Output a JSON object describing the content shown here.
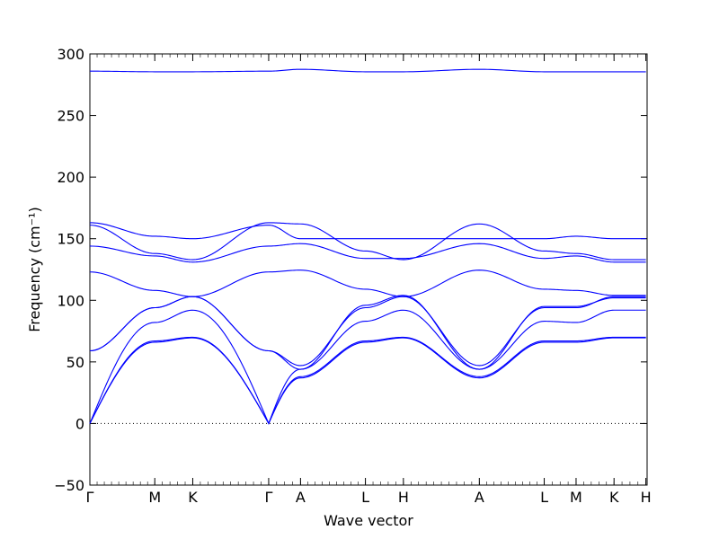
{
  "chart_data": {
    "type": "line",
    "xlabel": "Wave vector",
    "ylabel": "Frequency (cm⁻¹)",
    "ylim": [
      -50,
      300
    ],
    "yticks": [
      -50,
      0,
      50,
      100,
      150,
      200,
      250,
      300
    ],
    "xlim": [
      0,
      4.55
    ],
    "high_symmetry_points": [
      {
        "label": "Γ",
        "x": 0.0
      },
      {
        "label": "M",
        "x": 0.53
      },
      {
        "label": "K",
        "x": 0.84
      },
      {
        "label": "Γ",
        "x": 1.46
      },
      {
        "label": "A",
        "x": 1.72
      },
      {
        "label": "L",
        "x": 2.25
      },
      {
        "label": "H",
        "x": 2.56
      },
      {
        "label": "A",
        "x": 3.18
      },
      {
        "label": "L",
        "x": 3.71
      },
      {
        "label": "M",
        "x": 3.97
      },
      {
        "label": "K",
        "x": 4.28
      },
      {
        "label": "H",
        "x": 4.54
      }
    ],
    "zero_line": true,
    "line_color": "#0000ff",
    "series": [
      {
        "x": [
          0,
          0.53,
          0.84,
          1.46,
          1.72,
          2.25,
          2.56,
          3.18,
          3.71,
          3.97,
          4.28,
          4.54
        ],
        "y": [
          286,
          285.5,
          285.5,
          286,
          287.5,
          285.5,
          285.5,
          287.5,
          285.5,
          285.5,
          285.5,
          285.5
        ]
      },
      {
        "x": [
          0,
          0.53,
          0.84,
          1.46,
          1.72,
          2.25,
          2.56,
          3.18,
          3.71,
          3.97,
          4.28,
          4.54
        ],
        "y": [
          163,
          152,
          150,
          161,
          150,
          150,
          150,
          150,
          150,
          152,
          150,
          150
        ]
      },
      {
        "x": [
          0,
          0.53,
          0.84,
          1.46,
          1.72,
          2.25,
          2.56,
          3.18,
          3.71,
          3.97,
          4.28,
          4.54
        ],
        "y": [
          161,
          138,
          133,
          163,
          162,
          140,
          133,
          162,
          140,
          138,
          133,
          133
        ]
      },
      {
        "x": [
          0,
          0.53,
          0.84,
          1.46,
          1.72,
          2.25,
          2.56,
          3.18,
          3.71,
          3.97,
          4.28,
          4.54
        ],
        "y": [
          144,
          136,
          131,
          144,
          146,
          134,
          134,
          146,
          134,
          136,
          131,
          131
        ]
      },
      {
        "x": [
          0,
          0.53,
          0.84,
          1.46,
          1.72,
          2.25,
          2.56,
          3.18,
          3.71,
          3.97,
          4.28,
          4.54
        ],
        "y": [
          123,
          108,
          103,
          123,
          124.5,
          109,
          103,
          124.5,
          109,
          108,
          104,
          104
        ]
      },
      {
        "x": [
          0,
          0.53,
          0.84,
          1.46,
          1.72,
          2.25,
          2.56,
          3.18,
          3.71,
          3.97,
          4.28,
          4.54
        ],
        "y": [
          59,
          94,
          103,
          59,
          47,
          94,
          103,
          47,
          94,
          94,
          103,
          103
        ]
      },
      {
        "x": [
          0,
          0.53,
          0.84,
          1.46,
          1.72,
          2.25,
          2.56,
          3.18,
          3.71,
          3.97,
          4.28,
          4.54
        ],
        "y": [
          59,
          94,
          103,
          59,
          44,
          96,
          104,
          44,
          95,
          95,
          102,
          102
        ]
      },
      {
        "x": [
          0,
          0.53,
          0.84,
          1.46,
          1.72,
          2.25,
          2.56,
          3.18,
          3.71,
          3.97,
          4.28,
          4.54
        ],
        "y": [
          0,
          82,
          92,
          0,
          44,
          83,
          92,
          44,
          83,
          82,
          92,
          92
        ]
      },
      {
        "x": [
          0,
          0.53,
          0.84,
          1.46,
          1.72,
          2.25,
          2.56,
          3.18,
          3.71,
          3.97,
          4.28,
          4.54
        ],
        "y": [
          0,
          66,
          69.5,
          0,
          37,
          66,
          69.5,
          37,
          66,
          66,
          69.5,
          69.5
        ]
      },
      {
        "x": [
          0,
          0.53,
          0.84,
          1.46,
          1.72,
          2.25,
          2.56,
          3.18,
          3.71,
          3.97,
          4.28,
          4.54
        ],
        "y": [
          0,
          67,
          70,
          0,
          38,
          67,
          70,
          38,
          67,
          67,
          70,
          70
        ]
      }
    ]
  }
}
